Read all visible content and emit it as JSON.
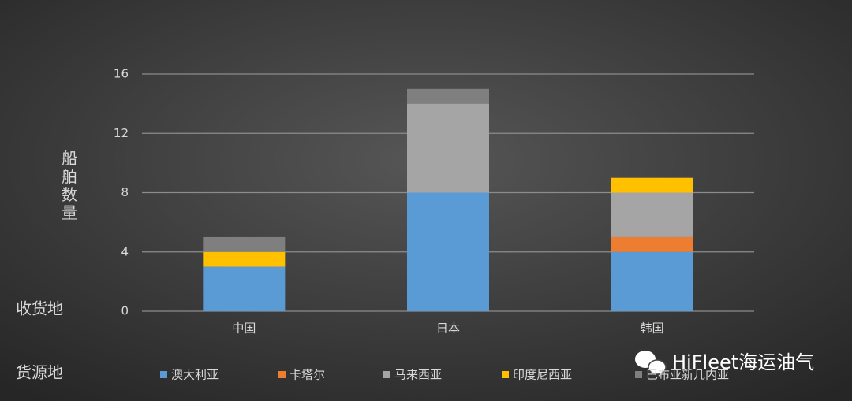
{
  "chart_data": {
    "type": "stacked_bar",
    "y_label": "船舶数量",
    "x_label": "收货地",
    "legend_title": "货源地",
    "watermark": "HiFleet海运油气",
    "categories": [
      "中国",
      "日本",
      "韩国"
    ],
    "series": [
      {
        "name": "澳大利亚",
        "color": "#5b9bd5",
        "values": [
          3,
          8,
          4
        ]
      },
      {
        "name": "卡塔尔",
        "color": "#ed7d31",
        "values": [
          0,
          0,
          1
        ]
      },
      {
        "name": "马来西亚",
        "color": "#a5a5a5",
        "values": [
          0,
          6,
          3
        ]
      },
      {
        "name": "印度尼西亚",
        "color": "#ffc000",
        "values": [
          1,
          0,
          1
        ]
      },
      {
        "name": "巴布亚新几内亚",
        "color": "#7f7f7f",
        "values": [
          1,
          1,
          0
        ]
      }
    ],
    "ylim": [
      0,
      16
    ],
    "yticks": [
      0,
      4,
      8,
      12,
      16
    ],
    "grid": true,
    "legend": "bottom"
  }
}
